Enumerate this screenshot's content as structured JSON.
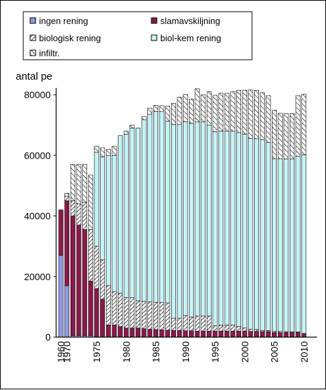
{
  "chart_data": {
    "type": "bar",
    "stacked": true,
    "ylabel": "antal pe",
    "xlabel": "",
    "ylim": [
      0,
      80000
    ],
    "yticks": [
      "0",
      "20000",
      "40000",
      "60000",
      "80000"
    ],
    "xticks": [
      "1960",
      "1970",
      "1975",
      "1980",
      "1985",
      "1990",
      "1995",
      "2000",
      "2005",
      "2010"
    ],
    "legend_position": "top",
    "categories": [
      "1960",
      "1970",
      "1971",
      "1972",
      "1973",
      "1974",
      "1975",
      "1976",
      "1977",
      "1978",
      "1979",
      "1980",
      "1981",
      "1982",
      "1983",
      "1984",
      "1985",
      "1986",
      "1987",
      "1988",
      "1989",
      "1990",
      "1991",
      "1992",
      "1993",
      "1994",
      "1995",
      "1996",
      "1997",
      "1998",
      "1999",
      "2000",
      "2001",
      "2002",
      "2003",
      "2004",
      "2005",
      "2006",
      "2007",
      "2008",
      "2009",
      "2010"
    ],
    "series": [
      {
        "name": "ingen  rening",
        "color": "#8E9AE0",
        "pattern": "solid",
        "values": [
          27000,
          17000,
          500,
          500,
          500,
          500,
          0,
          0,
          0,
          0,
          0,
          0,
          0,
          0,
          0,
          0,
          0,
          0,
          0,
          0,
          0,
          0,
          0,
          0,
          0,
          0,
          0,
          0,
          0,
          0,
          0,
          0,
          0,
          0,
          0,
          0,
          0,
          0,
          0,
          0,
          0,
          0
        ]
      },
      {
        "name": "slamavskiljning",
        "color": "#8B1A4A",
        "pattern": "solid",
        "values": [
          15000,
          28000,
          39500,
          36500,
          35000,
          18000,
          16000,
          12500,
          4000,
          4000,
          3500,
          3000,
          3000,
          3000,
          2800,
          2600,
          2500,
          2400,
          2300,
          2200,
          2200,
          2100,
          2100,
          2000,
          2000,
          2000,
          2000,
          2000,
          2000,
          2000,
          2000,
          2000,
          1900,
          1900,
          1800,
          1800,
          1500,
          1500,
          1500,
          1500,
          1500,
          1000
        ]
      },
      {
        "name": "biologisk  rening",
        "color": "#ffffff",
        "pattern": "hatch-dense",
        "values": [
          0,
          1500,
          5000,
          7000,
          9000,
          17000,
          14000,
          13000,
          13000,
          11000,
          11000,
          10000,
          10000,
          9000,
          9000,
          9000,
          9000,
          9000,
          9000,
          4000,
          4000,
          5000,
          4500,
          5000,
          5000,
          5000,
          1800,
          2000,
          2000,
          2000,
          1500,
          1000,
          700,
          600,
          400,
          400,
          400,
          400,
          300,
          300,
          200,
          200
        ]
      },
      {
        "name": "biol-kem rening",
        "color": "#C4F4F8",
        "pattern": "solid",
        "values": [
          0,
          0,
          0,
          0,
          0,
          0,
          31000,
          34000,
          43000,
          45000,
          52000,
          54000,
          56000,
          57000,
          60000,
          62000,
          63000,
          63000,
          60000,
          64000,
          64000,
          64000,
          64000,
          64000,
          64000,
          63000,
          64000,
          64000,
          64000,
          64000,
          64000,
          64000,
          63000,
          63000,
          63000,
          62000,
          57000,
          57000,
          57000,
          57000,
          58000,
          59000
        ]
      },
      {
        "name": "infiltr.",
        "color": "#ffffff",
        "pattern": "hatch-sparse",
        "values": [
          0,
          1000,
          12000,
          13000,
          12500,
          18000,
          2000,
          3000,
          2000,
          3000,
          0,
          1000,
          1000,
          0,
          1000,
          2000,
          2000,
          2000,
          5000,
          7000,
          9000,
          9000,
          8000,
          11000,
          9000,
          11000,
          12000,
          12500,
          12500,
          13000,
          14000,
          14500,
          16000,
          16000,
          15500,
          15500,
          16000,
          15000,
          15000,
          15000,
          20000,
          20000
        ]
      }
    ]
  },
  "colors": {
    "frame": "#000000",
    "background": "#ffffff",
    "text": "#000000"
  }
}
